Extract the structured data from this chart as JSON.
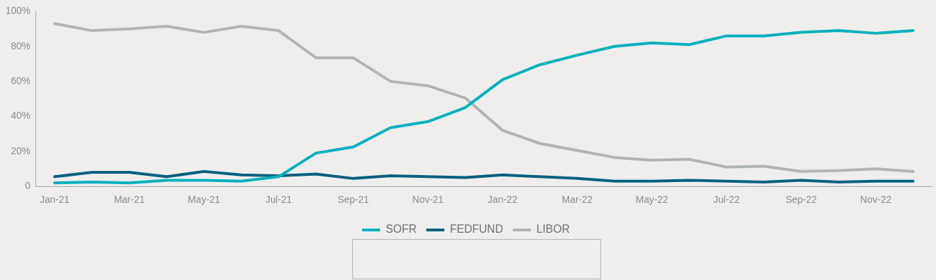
{
  "chart_data": {
    "type": "line",
    "categories": [
      "Jan-21",
      null,
      "Mar-21",
      null,
      "May-21",
      null,
      "Jul-21",
      null,
      "Sep-21",
      null,
      "Nov-21",
      null,
      "Jan-22",
      null,
      "Mar-22",
      null,
      "May-22",
      null,
      "Jul-22",
      null,
      "Sep-22",
      null,
      "Nov-22",
      null
    ],
    "series": [
      {
        "name": "SOFR",
        "color": "#00b0bd",
        "values": [
          2,
          2.5,
          2,
          3.5,
          3.5,
          3,
          5.5,
          19,
          22.5,
          33.5,
          37,
          45,
          61,
          69.5,
          75,
          80,
          82,
          81,
          86,
          86,
          88,
          89,
          87.5,
          89
        ]
      },
      {
        "name": "FEDFUND",
        "color": "#00607f",
        "values": [
          5.5,
          8,
          8,
          5.5,
          8.5,
          6.5,
          6,
          7,
          4.5,
          6,
          5.5,
          5,
          6.5,
          5.5,
          4.5,
          3,
          3,
          3.5,
          3,
          2.5,
          3.5,
          2.5,
          3,
          3
        ]
      },
      {
        "name": "LIBOR",
        "color": "#b1b4b6",
        "values": [
          93,
          89,
          90,
          91.5,
          88,
          91.5,
          89,
          73.5,
          73.5,
          60,
          57.5,
          50.5,
          32,
          24.5,
          20.5,
          16.5,
          15,
          15.5,
          11,
          11.5,
          8.5,
          9,
          10,
          8.5
        ]
      }
    ],
    "ylim": [
      0,
      100
    ],
    "yticks": [
      {
        "value": 0,
        "label": "0"
      },
      {
        "value": 20,
        "label": "20%"
      },
      {
        "value": 40,
        "label": "40%"
      },
      {
        "value": 60,
        "label": "60%"
      },
      {
        "value": 80,
        "label": "80%"
      },
      {
        "value": 100,
        "label": "100%"
      }
    ],
    "grid": false,
    "legend": "bottom",
    "marker": "none",
    "line_style": "solid"
  }
}
